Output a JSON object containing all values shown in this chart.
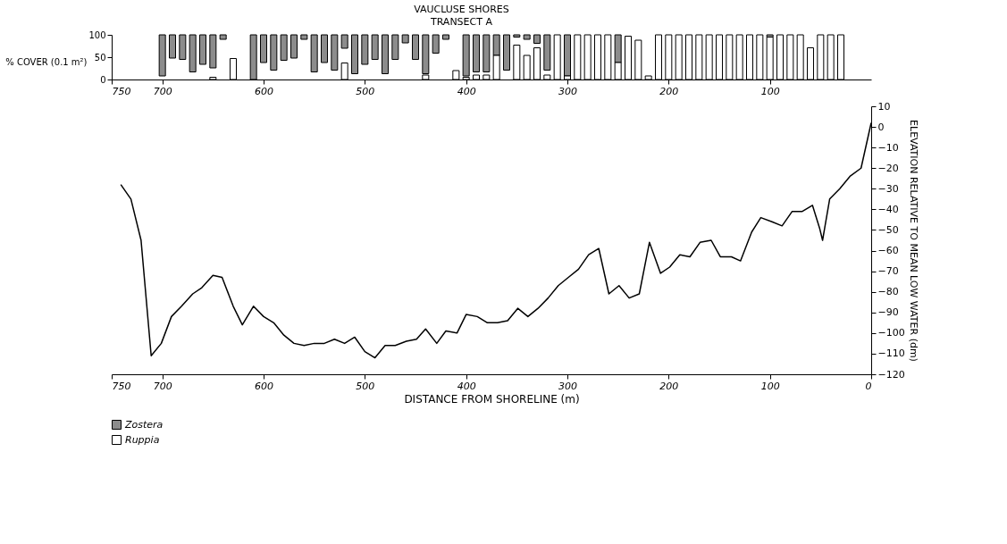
{
  "chart_data": [
    {
      "type": "bar",
      "title": "VAUCLUSE SHORES",
      "subtitle": "TRANSECT A",
      "ylabel": "% COVER (0.1 m²)",
      "xlim": [
        750,
        0
      ],
      "xticks": [
        750,
        700,
        600,
        500,
        400,
        300,
        200,
        100
      ],
      "ylim": [
        0,
        100
      ],
      "yticks": [
        0,
        50,
        100
      ],
      "grid": false,
      "legend": "bottom",
      "series": [
        {
          "name": "Zostera",
          "color": "#8c8c8c",
          "x": [
            700,
            690,
            680,
            670,
            660,
            650,
            640,
            610,
            600,
            590,
            580,
            570,
            560,
            550,
            540,
            530,
            520,
            510,
            500,
            490,
            480,
            470,
            460,
            450,
            440,
            430,
            420,
            400,
            390,
            380,
            370,
            360,
            350,
            340,
            330,
            320,
            300,
            250,
            100
          ],
          "base": [
            8,
            48,
            45,
            17,
            34,
            26,
            90,
            0,
            38,
            21,
            43,
            48,
            90,
            17,
            38,
            21,
            70,
            13,
            34,
            45,
            13,
            45,
            82,
            45,
            13,
            59,
            90,
            8,
            17,
            17,
            54,
            21,
            95,
            90,
            81,
            21,
            8,
            38,
            95
          ],
          "values": [
            92,
            52,
            55,
            83,
            66,
            74,
            10,
            100,
            62,
            79,
            57,
            52,
            10,
            83,
            62,
            79,
            30,
            87,
            66,
            55,
            87,
            55,
            18,
            55,
            87,
            41,
            10,
            92,
            83,
            83,
            46,
            79,
            5,
            10,
            19,
            79,
            92,
            62,
            5
          ]
        },
        {
          "name": "Ruppia",
          "color": "#ffffff",
          "x": [
            650,
            630,
            520,
            440,
            410,
            400,
            390,
            380,
            370,
            350,
            340,
            330,
            320,
            310,
            300,
            290,
            280,
            270,
            260,
            250,
            240,
            230,
            220,
            210,
            200,
            190,
            180,
            170,
            160,
            150,
            140,
            130,
            120,
            110,
            100,
            90,
            80,
            70,
            60,
            50,
            40,
            30
          ],
          "values": [
            5,
            47,
            37,
            10,
            20,
            5,
            10,
            10,
            54,
            77,
            54,
            71,
            10,
            100,
            8,
            100,
            100,
            100,
            100,
            38,
            97,
            88,
            8,
            100,
            100,
            100,
            100,
            100,
            100,
            100,
            100,
            100,
            100,
            100,
            95,
            100,
            100,
            100,
            71,
            100,
            100,
            100
          ]
        }
      ]
    },
    {
      "type": "line",
      "xlabel": "DISTANCE FROM SHORELINE (m)",
      "ylabel": "ELEVATION RELATIVE TO MEAN LOW WATER (dm)",
      "xlim": [
        750,
        0
      ],
      "xticks": [
        750,
        700,
        600,
        500,
        400,
        300,
        200,
        100,
        0
      ],
      "ylim": [
        -120,
        10
      ],
      "yticks": [
        10,
        0,
        -10,
        -20,
        -30,
        -40,
        -50,
        -60,
        -70,
        -80,
        -90,
        -100,
        -110,
        -120
      ],
      "grid": false,
      "line_style": "solid",
      "series": [
        {
          "color": "#000000",
          "x": [
            741,
            731,
            721,
            711,
            701,
            691,
            681,
            670,
            661,
            650,
            641,
            630,
            621,
            610,
            600,
            590,
            580,
            570,
            560,
            550,
            540,
            530,
            520,
            510,
            500,
            490,
            480,
            470,
            459,
            449,
            440,
            429,
            420,
            409,
            400,
            389,
            379,
            369,
            359,
            349,
            339,
            329,
            319,
            309,
            299,
            289,
            279,
            269,
            259,
            249,
            239,
            229,
            219,
            208,
            199,
            189,
            179,
            169,
            158,
            149,
            138,
            129,
            118,
            109,
            98,
            88,
            78,
            68,
            58,
            51,
            48,
            41,
            31,
            21,
            10,
            0
          ],
          "values": [
            -28,
            -35,
            -55,
            -111,
            -105,
            -92,
            -87,
            -81,
            -78,
            -72,
            -73,
            -87,
            -96,
            -87,
            -92,
            -95,
            -101,
            -105,
            -106,
            -105,
            -105,
            -103,
            -105,
            -102,
            -109,
            -112,
            -106,
            -106,
            -104,
            -103,
            -98,
            -105,
            -99,
            -100,
            -91,
            -92,
            -95,
            -95,
            -94,
            -88,
            -92,
            -88,
            -83,
            -77,
            -73,
            -69,
            -62,
            -59,
            -81,
            -77,
            -83,
            -81,
            -56,
            -71,
            -68,
            -62,
            -63,
            -56,
            -55,
            -63,
            -63,
            -65,
            -51,
            -44,
            -46,
            -48,
            -41,
            -41,
            -38,
            -49,
            -55,
            -35,
            -30,
            -24,
            -20,
            2
          ]
        }
      ]
    }
  ]
}
